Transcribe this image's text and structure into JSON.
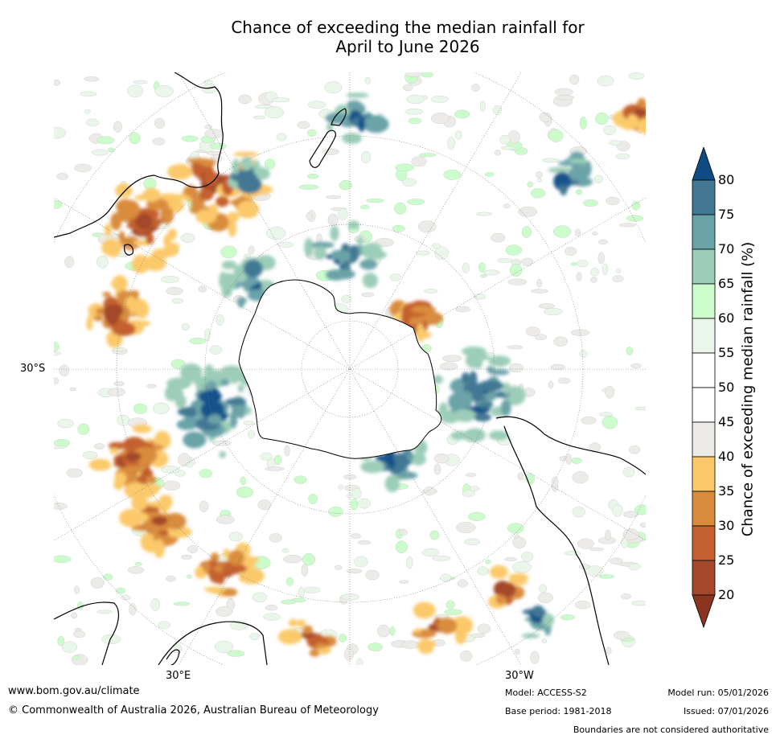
{
  "title_line1": "Chance of exceeding the median rainfall for",
  "title_line2": "April to June 2026",
  "map": {
    "lat_label": "30°S",
    "lon_labels": [
      "30°E",
      "30°W"
    ],
    "colors": {
      "c20_25": "#a4472b",
      "c25_30": "#c4612f",
      "c30_35": "#d98c3e",
      "c35_40": "#fbc96a",
      "c40_45": "#ecebe7",
      "c45_55": "#ffffff",
      "c55_60": "#eaf6ea",
      "c60_65": "#ccfccc",
      "c65_70": "#9bcdb8",
      "c70_75": "#6aa3a8",
      "c75_80": "#437894",
      "c80": "#12528a",
      "land": "#ffffff",
      "coast": "#000000"
    }
  },
  "colorbar": {
    "label": "Chance of exceeding median rainfall (%)",
    "ticks": [
      "80",
      "75",
      "70",
      "65",
      "60",
      "55",
      "50",
      "45",
      "40",
      "35",
      "30",
      "25",
      "20"
    ],
    "bins": [
      {
        "color": "#0f4c84"
      },
      {
        "color": "#437894"
      },
      {
        "color": "#6aa3a8"
      },
      {
        "color": "#9bcdb8"
      },
      {
        "color": "#ccfccc"
      },
      {
        "color": "#eaf6ea"
      },
      {
        "color": "#ffffff"
      },
      {
        "color": "#ffffff"
      },
      {
        "color": "#ecebe7"
      },
      {
        "color": "#fbc96a"
      },
      {
        "color": "#d98c3e"
      },
      {
        "color": "#c4612f"
      },
      {
        "color": "#a4472b"
      },
      {
        "color": "#8b3420"
      }
    ]
  },
  "footer": {
    "website": "www.bom.gov.au/climate",
    "copyright": "© Commonwealth of Australia 2026, Australian Bureau of Meteorology",
    "model": "Model: ACCESS-S2",
    "base_period": "Base period: 1981-2018",
    "model_run": "Model run: 05/01/2026",
    "issued": "Issued: 07/01/2026",
    "disclaimer": "Boundaries are not considered authoritative"
  }
}
